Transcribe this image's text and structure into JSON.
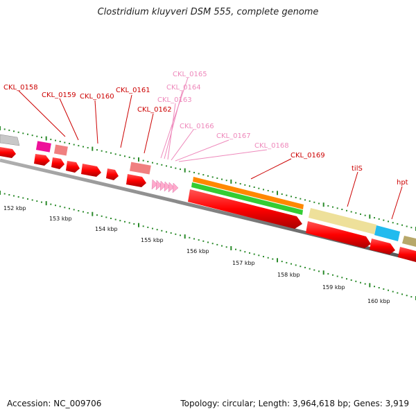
{
  "title": "Clostridium kluyveri DSM 555, complete genome",
  "footer": {
    "accession": "Accession: NC_009706",
    "summary": "Topology: circular; Length: 3,964,618 bp; Genes: 3,919"
  },
  "colors": {
    "label_dark": "#cc0000",
    "label_light": "#ee88bb",
    "backbone": "#777777",
    "tick": "#2a8a2a",
    "cds": "#ff0000",
    "trna": "#ffaacc"
  },
  "gene_labels": [
    {
      "text": "CKL_0158",
      "color": "dark"
    },
    {
      "text": "CKL_0159",
      "color": "dark"
    },
    {
      "text": "CKL_0160",
      "color": "dark"
    },
    {
      "text": "CKL_0161",
      "color": "dark"
    },
    {
      "text": "CKL_0162",
      "color": "dark"
    },
    {
      "text": "CKL_0165",
      "color": "light"
    },
    {
      "text": "CKL_0164",
      "color": "light"
    },
    {
      "text": "CKL_0163",
      "color": "light"
    },
    {
      "text": "CKL_0166",
      "color": "light"
    },
    {
      "text": "CKL_0167",
      "color": "light"
    },
    {
      "text": "CKL_0168",
      "color": "light"
    },
    {
      "text": "CKL_0169",
      "color": "dark"
    },
    {
      "text": "tilS",
      "color": "dark"
    },
    {
      "text": "hpt",
      "color": "dark"
    }
  ],
  "kbp_labels": [
    "152 kbp",
    "153 kbp",
    "154 kbp",
    "155 kbp",
    "156 kbp",
    "157 kbp",
    "158 kbp",
    "159 kbp",
    "160 kbp"
  ]
}
